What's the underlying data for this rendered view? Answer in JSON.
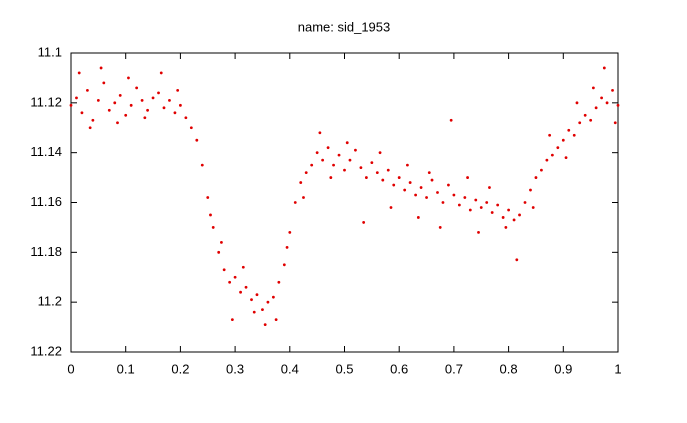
{
  "chart_data": {
    "type": "scatter",
    "title": "name: sid_1953",
    "color": "#e00000",
    "xlim": [
      0,
      1
    ],
    "ylim": [
      11.22,
      11.1
    ],
    "xticks": [
      0,
      0.1,
      0.2,
      0.3,
      0.4,
      0.5,
      0.6,
      0.7,
      0.8,
      0.9,
      1
    ],
    "yticks": [
      11.1,
      11.12,
      11.14,
      11.16,
      11.18,
      11.2,
      11.22
    ],
    "x": [
      0,
      0.01,
      0.02,
      0.03,
      0.04,
      0.05,
      0.06,
      0.07,
      0.08,
      0.09,
      0.1,
      0.11,
      0.12,
      0.13,
      0.14,
      0.15,
      0.16,
      0.17,
      0.18,
      0.19,
      0.2,
      0.21,
      0.22,
      0.23,
      0.24,
      0.25,
      0.26,
      0.27,
      0.28,
      0.29,
      0.3,
      0.31,
      0.32,
      0.33,
      0.34,
      0.35,
      0.36,
      0.37,
      0.38,
      0.39,
      0.4,
      0.41,
      0.42,
      0.43,
      0.44,
      0.45,
      0.46,
      0.47,
      0.48,
      0.49,
      0.5,
      0.51,
      0.52,
      0.53,
      0.54,
      0.55,
      0.56,
      0.57,
      0.58,
      0.59,
      0.6,
      0.61,
      0.62,
      0.63,
      0.64,
      0.65,
      0.66,
      0.67,
      0.68,
      0.69,
      0.7,
      0.71,
      0.72,
      0.73,
      0.74,
      0.75,
      0.76,
      0.77,
      0.78,
      0.79,
      0.8,
      0.81,
      0.82,
      0.83,
      0.84,
      0.85,
      0.86,
      0.87,
      0.88,
      0.89,
      0.9,
      0.91,
      0.92,
      0.93,
      0.94,
      0.95,
      0.96,
      0.97,
      0.98,
      0.99,
      1,
      0.015,
      0.035,
      0.055,
      0.085,
      0.105,
      0.135,
      0.165,
      0.195,
      0.255,
      0.275,
      0.295,
      0.315,
      0.335,
      0.355,
      0.375,
      0.395,
      0.425,
      0.455,
      0.475,
      0.505,
      0.535,
      0.565,
      0.585,
      0.615,
      0.635,
      0.655,
      0.675,
      0.695,
      0.725,
      0.745,
      0.765,
      0.795,
      0.815,
      0.845,
      0.875,
      0.905,
      0.925,
      0.955,
      0.975,
      0.995
    ],
    "values": [
      11.121,
      11.118,
      11.124,
      11.115,
      11.127,
      11.119,
      11.112,
      11.123,
      11.12,
      11.117,
      11.125,
      11.121,
      11.114,
      11.119,
      11.123,
      11.118,
      11.116,
      11.122,
      11.119,
      11.124,
      11.121,
      11.126,
      11.13,
      11.135,
      11.145,
      11.158,
      11.17,
      11.18,
      11.187,
      11.192,
      11.19,
      11.196,
      11.194,
      11.199,
      11.197,
      11.203,
      11.2,
      11.198,
      11.192,
      11.185,
      11.172,
      11.16,
      11.152,
      11.148,
      11.145,
      11.14,
      11.143,
      11.138,
      11.145,
      11.141,
      11.147,
      11.143,
      11.139,
      11.146,
      11.15,
      11.144,
      11.148,
      11.151,
      11.147,
      11.153,
      11.15,
      11.155,
      11.152,
      11.157,
      11.154,
      11.158,
      11.151,
      11.156,
      11.16,
      11.153,
      11.157,
      11.161,
      11.158,
      11.163,
      11.159,
      11.162,
      11.16,
      11.164,
      11.161,
      11.166,
      11.163,
      11.167,
      11.165,
      11.16,
      11.155,
      11.15,
      11.147,
      11.143,
      11.141,
      11.138,
      11.135,
      11.131,
      11.133,
      11.128,
      11.125,
      11.127,
      11.122,
      11.118,
      11.12,
      11.115,
      11.121,
      11.108,
      11.13,
      11.106,
      11.128,
      11.11,
      11.126,
      11.108,
      11.115,
      11.165,
      11.176,
      11.207,
      11.186,
      11.204,
      11.209,
      11.207,
      11.178,
      11.158,
      11.132,
      11.15,
      11.136,
      11.168,
      11.14,
      11.162,
      11.145,
      11.166,
      11.148,
      11.17,
      11.127,
      11.15,
      11.172,
      11.154,
      11.17,
      11.183,
      11.162,
      11.133,
      11.142,
      11.12,
      11.114,
      11.106,
      11.128
    ]
  }
}
